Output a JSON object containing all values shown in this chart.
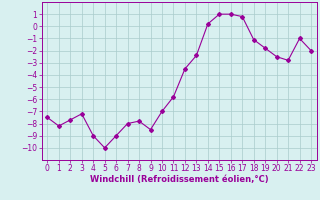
{
  "x": [
    0,
    1,
    2,
    3,
    4,
    5,
    6,
    7,
    8,
    9,
    10,
    11,
    12,
    13,
    14,
    15,
    16,
    17,
    18,
    19,
    20,
    21,
    22,
    23
  ],
  "y": [
    -7.5,
    -8.2,
    -7.7,
    -7.2,
    -9.0,
    -10.0,
    -9.0,
    -8.0,
    -7.8,
    -8.5,
    -7.0,
    -5.8,
    -3.5,
    -2.4,
    0.2,
    1.0,
    1.0,
    0.8,
    -1.1,
    -1.8,
    -2.5,
    -2.8,
    -1.0,
    -2.0
  ],
  "line_color": "#990099",
  "marker": "D",
  "marker_size": 2,
  "bg_color": "#d8f0f0",
  "grid_color": "#aacccc",
  "xlabel": "Windchill (Refroidissement éolien,°C)",
  "xlabel_fontsize": 6,
  "tick_color": "#990099",
  "tick_fontsize": 5.5,
  "ylim": [
    -11,
    2
  ],
  "xlim": [
    -0.5,
    23.5
  ],
  "yticks": [
    1,
    0,
    -1,
    -2,
    -3,
    -4,
    -5,
    -6,
    -7,
    -8,
    -9,
    -10
  ],
  "xticks": [
    0,
    1,
    2,
    3,
    4,
    5,
    6,
    7,
    8,
    9,
    10,
    11,
    12,
    13,
    14,
    15,
    16,
    17,
    18,
    19,
    20,
    21,
    22,
    23
  ]
}
